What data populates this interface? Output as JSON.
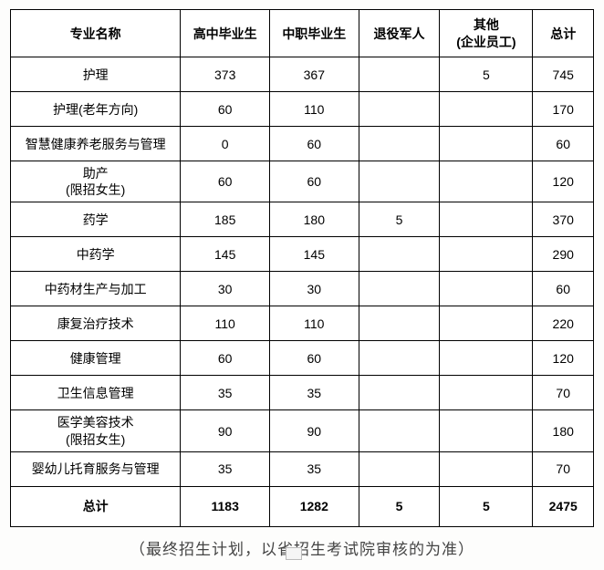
{
  "headers": {
    "name": "专业名称",
    "hs": "高中毕业生",
    "zz": "中职毕业生",
    "ty": "退役军人",
    "qt_l1": "其他",
    "qt_l2": "(企业员工)",
    "zj": "总计"
  },
  "rows": [
    {
      "name": "护理",
      "hs": "373",
      "zz": "367",
      "ty": "",
      "qt": "5",
      "zj": "745"
    },
    {
      "name": "护理(老年方向)",
      "hs": "60",
      "zz": "110",
      "ty": "",
      "qt": "",
      "zj": "170"
    },
    {
      "name": "智慧健康养老服务与管理",
      "hs": "0",
      "zz": "60",
      "ty": "",
      "qt": "",
      "zj": "60"
    },
    {
      "name_l1": "助产",
      "name_l2": "(限招女生)",
      "hs": "60",
      "zz": "60",
      "ty": "",
      "qt": "",
      "zj": "120"
    },
    {
      "name": "药学",
      "hs": "185",
      "zz": "180",
      "ty": "5",
      "qt": "",
      "zj": "370"
    },
    {
      "name": "中药学",
      "hs": "145",
      "zz": "145",
      "ty": "",
      "qt": "",
      "zj": "290"
    },
    {
      "name": "中药材生产与加工",
      "hs": "30",
      "zz": "30",
      "ty": "",
      "qt": "",
      "zj": "60"
    },
    {
      "name": "康复治疗技术",
      "hs": "110",
      "zz": "110",
      "ty": "",
      "qt": "",
      "zj": "220"
    },
    {
      "name": "健康管理",
      "hs": "60",
      "zz": "60",
      "ty": "",
      "qt": "",
      "zj": "120"
    },
    {
      "name": "卫生信息管理",
      "hs": "35",
      "zz": "35",
      "ty": "",
      "qt": "",
      "zj": "70"
    },
    {
      "name_l1": "医学美容技术",
      "name_l2": "(限招女生)",
      "hs": "90",
      "zz": "90",
      "ty": "",
      "qt": "",
      "zj": "180"
    },
    {
      "name": "婴幼儿托育服务与管理",
      "hs": "35",
      "zz": "35",
      "ty": "",
      "qt": "",
      "zj": "70"
    }
  ],
  "total": {
    "name": "总计",
    "hs": "1183",
    "zz": "1282",
    "ty": "5",
    "qt": "5",
    "zj": "2475"
  },
  "footnote_a": "（最终招生计划，以省",
  "footnote_b": "招生考试院审核的为准）"
}
